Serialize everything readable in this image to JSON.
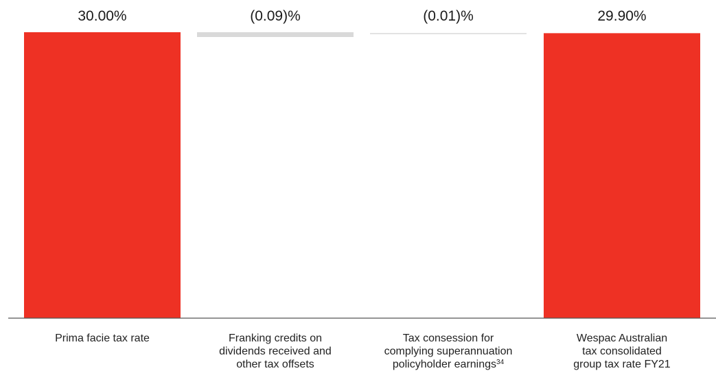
{
  "chart_data": {
    "type": "bar",
    "subtype": "waterfall",
    "categories": [
      "Prima facie tax rate",
      "Franking credits on dividends received and other tax offsets",
      "Tax consession for complying superannuation policyholder earnings34",
      "Wespac Australian tax consolidated group tax rate FY21"
    ],
    "category_lines": [
      [
        "Prima facie tax rate"
      ],
      [
        "Franking credits on",
        "dividends received and",
        "other tax offsets"
      ],
      [
        "Tax consession for",
        "complying superannuation",
        "policyholder earnings"
      ],
      [
        "Wespac Australian",
        "tax consolidated",
        "group tax rate FY21"
      ]
    ],
    "category_superscripts": [
      "",
      "",
      "34",
      ""
    ],
    "values": [
      30.0,
      -0.09,
      -0.01,
      29.9
    ],
    "value_labels": [
      "30.00%",
      "(0.09)%",
      "(0.01)%",
      "29.90%"
    ],
    "bar_kinds": [
      "total",
      "delta",
      "delta",
      "total"
    ],
    "title": "",
    "xlabel": "",
    "ylabel": "",
    "ylim": [
      0,
      30
    ],
    "grid": false,
    "legend": "none",
    "colors": {
      "total": "#ee3124",
      "delta": "#d9d9d9",
      "axis": "#555555"
    }
  }
}
